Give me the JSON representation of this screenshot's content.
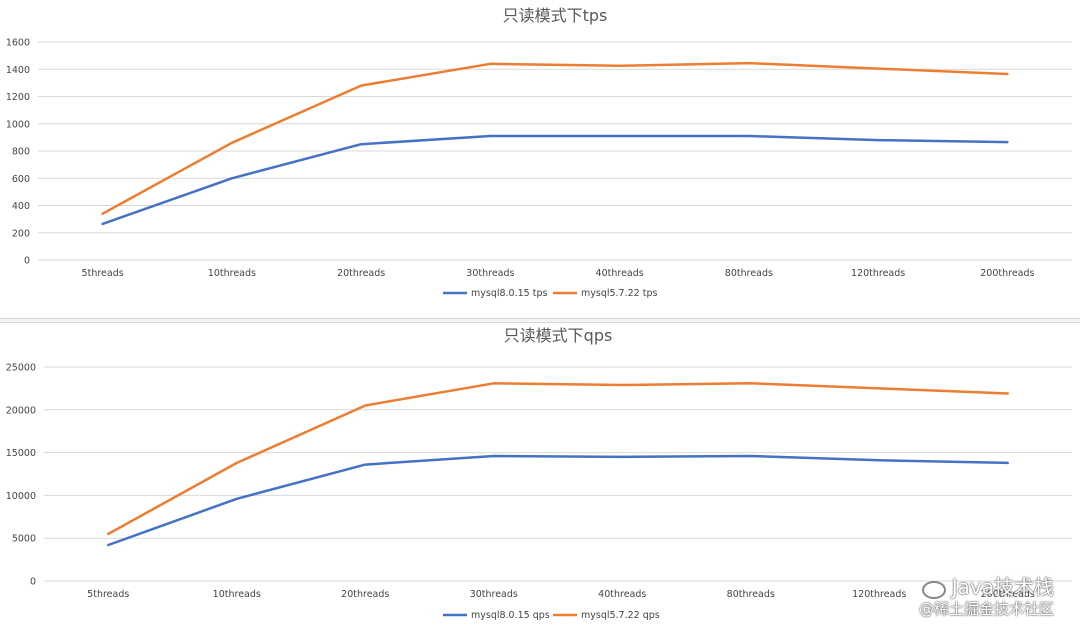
{
  "chart_data": [
    {
      "type": "line",
      "title": "只读模式下tps",
      "categories": [
        "5threads",
        "10threads",
        "20threads",
        "30threads",
        "40threads",
        "80threads",
        "120threads",
        "200threads"
      ],
      "ylim": [
        0,
        1600
      ],
      "yticks": [
        0,
        200,
        400,
        600,
        800,
        1000,
        1200,
        1400,
        1600
      ],
      "grid": true,
      "legend_position": "bottom",
      "series": [
        {
          "name": "mysql8.0.15 tps",
          "color": "#4472C4",
          "values": [
            265,
            600,
            850,
            910,
            910,
            910,
            880,
            865
          ]
        },
        {
          "name": "mysql5.7.22 tps",
          "color": "#ED7D31",
          "values": [
            340,
            860,
            1280,
            1440,
            1425,
            1445,
            1405,
            1365
          ]
        }
      ]
    },
    {
      "type": "line",
      "title": "只读模式下qps",
      "categories": [
        "5threads",
        "10threads",
        "20threads",
        "30threads",
        "40threads",
        "80threads",
        "120threads",
        "200threads"
      ],
      "ylim": [
        0,
        25000
      ],
      "yticks": [
        0,
        5000,
        10000,
        15000,
        20000,
        25000
      ],
      "grid": true,
      "legend_position": "bottom",
      "series": [
        {
          "name": "mysql8.0.15 qps",
          "color": "#4472C4",
          "values": [
            4200,
            9600,
            13600,
            14600,
            14500,
            14600,
            14100,
            13800
          ]
        },
        {
          "name": "mysql5.7.22 qps",
          "color": "#ED7D31",
          "values": [
            5500,
            13800,
            20500,
            23100,
            22900,
            23100,
            22500,
            21900
          ]
        }
      ]
    }
  ],
  "watermark": {
    "line1": "Java技术栈",
    "line2": "@稀土掘金技术社区"
  }
}
